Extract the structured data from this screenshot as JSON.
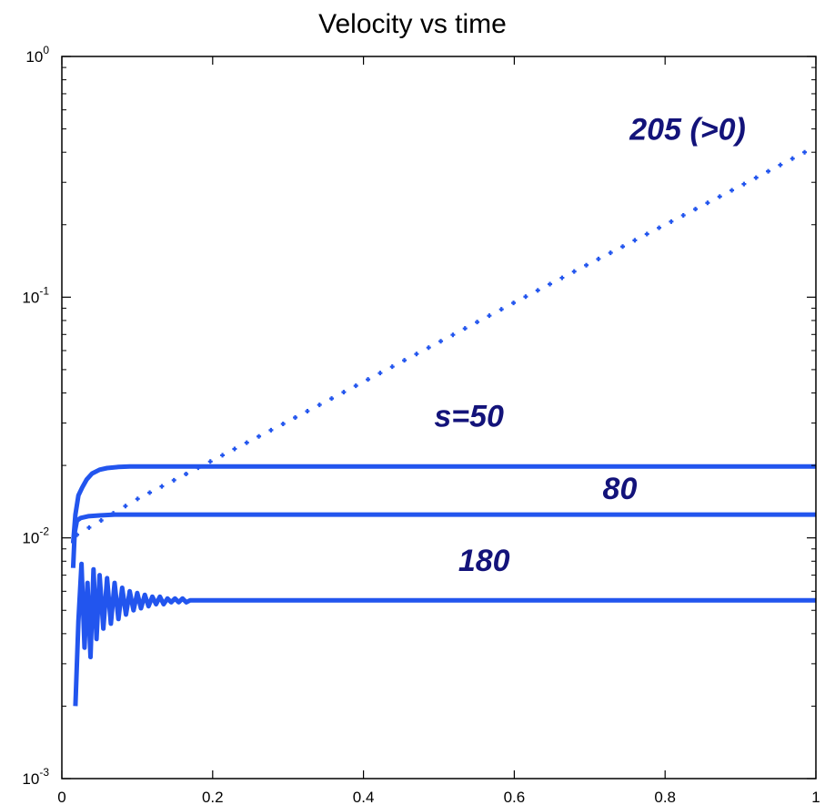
{
  "chart_data": {
    "type": "line",
    "title": "Velocity vs time",
    "xlabel": "",
    "ylabel": "",
    "xlim": [
      0,
      1
    ],
    "ylim": [
      0.001,
      1
    ],
    "yscale": "log",
    "grid": false,
    "x_ticks": [
      "0",
      "0.2",
      "0.4",
      "0.6",
      "0.8",
      "1"
    ],
    "y_ticks": [
      {
        "base": "10",
        "exp": "0"
      },
      {
        "base": "10",
        "exp": "-1"
      },
      {
        "base": "10",
        "exp": "-2"
      },
      {
        "base": "10",
        "exp": "-3"
      }
    ],
    "series_color": "#2255ee",
    "annotation_color": "#13137a",
    "series": [
      {
        "name": "205 (>0)",
        "style": "dotted",
        "x": [
          0.02,
          0.1,
          0.2,
          0.3,
          0.4,
          0.5,
          0.6,
          0.7,
          0.8,
          0.9,
          0.985
        ],
        "y": [
          0.0103,
          0.0145,
          0.021,
          0.0305,
          0.0445,
          0.065,
          0.095,
          0.138,
          0.2,
          0.29,
          0.4
        ]
      },
      {
        "name": "s=50",
        "style": "solid",
        "x": [
          0.015,
          0.018,
          0.022,
          0.027,
          0.033,
          0.04,
          0.05,
          0.06,
          0.075,
          0.09,
          0.12,
          1.0
        ],
        "y": [
          0.0095,
          0.0125,
          0.015,
          0.0162,
          0.0175,
          0.0185,
          0.0192,
          0.0195,
          0.0197,
          0.0198,
          0.0198,
          0.0198
        ]
      },
      {
        "name": "80",
        "style": "solid",
        "x": [
          0.015,
          0.017,
          0.02,
          0.025,
          0.035,
          0.05,
          0.07,
          0.1,
          0.15,
          1.0
        ],
        "y": [
          0.0075,
          0.0105,
          0.0118,
          0.0121,
          0.0123,
          0.0124,
          0.0125,
          0.0125,
          0.0125,
          0.0125
        ]
      },
      {
        "name": "180",
        "style": "solid",
        "x": [
          0.018,
          0.022,
          0.026,
          0.03,
          0.034,
          0.038,
          0.042,
          0.046,
          0.05,
          0.055,
          0.06,
          0.065,
          0.07,
          0.075,
          0.08,
          0.085,
          0.09,
          0.095,
          0.1,
          0.105,
          0.11,
          0.115,
          0.12,
          0.125,
          0.13,
          0.135,
          0.14,
          0.145,
          0.15,
          0.155,
          0.16,
          0.165,
          0.17,
          0.175,
          0.18,
          0.19,
          0.2,
          1.0
        ],
        "y": [
          0.002,
          0.0045,
          0.0078,
          0.0035,
          0.0065,
          0.0032,
          0.0074,
          0.0038,
          0.007,
          0.0042,
          0.0068,
          0.0044,
          0.0065,
          0.0046,
          0.0062,
          0.0048,
          0.006,
          0.005,
          0.0059,
          0.0051,
          0.0058,
          0.0052,
          0.0057,
          0.0053,
          0.0057,
          0.0053,
          0.0056,
          0.0054,
          0.0056,
          0.0054,
          0.0056,
          0.0054,
          0.0055,
          0.0055,
          0.0055,
          0.0055,
          0.0055,
          0.0055
        ]
      }
    ],
    "annotations": [
      {
        "text": "205 (>0)",
        "x": 0.83,
        "y": 0.45
      },
      {
        "text": "s=50",
        "x": 0.54,
        "y": 0.029
      },
      {
        "text": "80",
        "x": 0.74,
        "y": 0.0145
      },
      {
        "text": "180",
        "x": 0.56,
        "y": 0.0073
      }
    ]
  }
}
